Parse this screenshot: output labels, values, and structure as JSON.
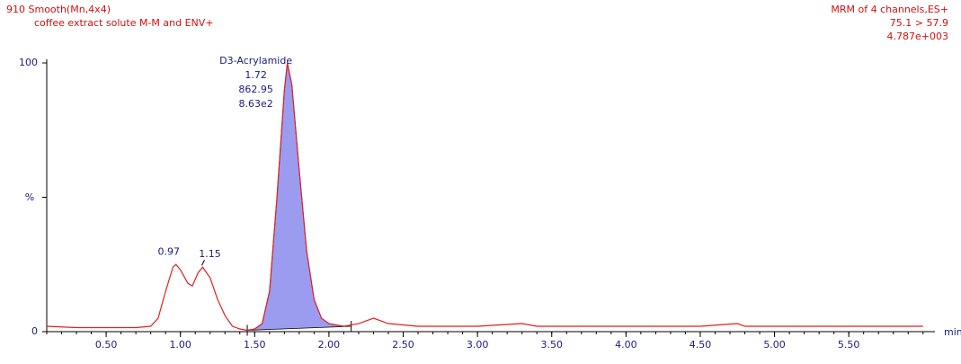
{
  "chart_data": {
    "type": "line",
    "title_left": [
      "910 Smooth(Mn,4x4)",
      "coffee extract solute M-M and ENV+"
    ],
    "title_right": [
      "MRM of 4 channels,ES+",
      "75.1 > 57.9",
      "4.787e+003"
    ],
    "ylabel": "%",
    "xlabel": "min",
    "xlim": [
      0.1,
      6.08
    ],
    "ylim": [
      0,
      100
    ],
    "xticks": [
      {
        "value": 0.5,
        "label": "0.50"
      },
      {
        "value": 1,
        "label": "1.00"
      },
      {
        "value": 1.5,
        "label": "1.50"
      },
      {
        "value": 2,
        "label": "2.00"
      },
      {
        "value": 2.5,
        "label": "2.50"
      },
      {
        "value": 3,
        "label": "3.00"
      },
      {
        "value": 3.5,
        "label": "3.50"
      },
      {
        "value": 4,
        "label": "4.00"
      },
      {
        "value": 4.5,
        "label": "4.50"
      },
      {
        "value": 5,
        "label": "5.00"
      },
      {
        "value": 5.5,
        "label": "5.50"
      }
    ],
    "yticks": [
      0,
      100
    ],
    "series": [
      {
        "name": "75.1 > 57.9",
        "color": "#e02020",
        "x": [
          0.1,
          0.3,
          0.5,
          0.7,
          0.8,
          0.85,
          0.9,
          0.95,
          0.97,
          1.0,
          1.05,
          1.08,
          1.12,
          1.15,
          1.2,
          1.25,
          1.3,
          1.35,
          1.4,
          1.45,
          1.5,
          1.55,
          1.6,
          1.65,
          1.7,
          1.72,
          1.75,
          1.8,
          1.85,
          1.9,
          1.95,
          2.0,
          2.1,
          2.2,
          2.3,
          2.4,
          2.6,
          3.0,
          3.3,
          3.4,
          4.0,
          4.5,
          4.75,
          4.8,
          5.5,
          6.0
        ],
        "values": [
          2,
          1.5,
          1.5,
          1.5,
          2,
          5,
          15,
          24,
          25,
          23,
          18,
          17,
          22,
          24,
          20,
          12,
          6,
          2,
          1,
          0.5,
          1,
          3,
          15,
          50,
          90,
          100,
          92,
          60,
          30,
          12,
          5,
          3,
          2,
          3,
          5,
          3,
          2,
          2,
          3,
          2,
          2,
          2,
          3,
          2,
          2,
          2
        ]
      }
    ],
    "integration": {
      "xlim": [
        1.45,
        2.15
      ],
      "color": "#9b9bf0"
    },
    "annotations": [
      {
        "x": 1.72,
        "lines": [
          "D3-Acrylamide",
          "1.72",
          "862.95",
          "8.63e2"
        ]
      },
      {
        "x": 0.97,
        "lines": [
          "0.97"
        ]
      },
      {
        "x": 1.15,
        "lines": [
          "1.15"
        ]
      }
    ]
  }
}
